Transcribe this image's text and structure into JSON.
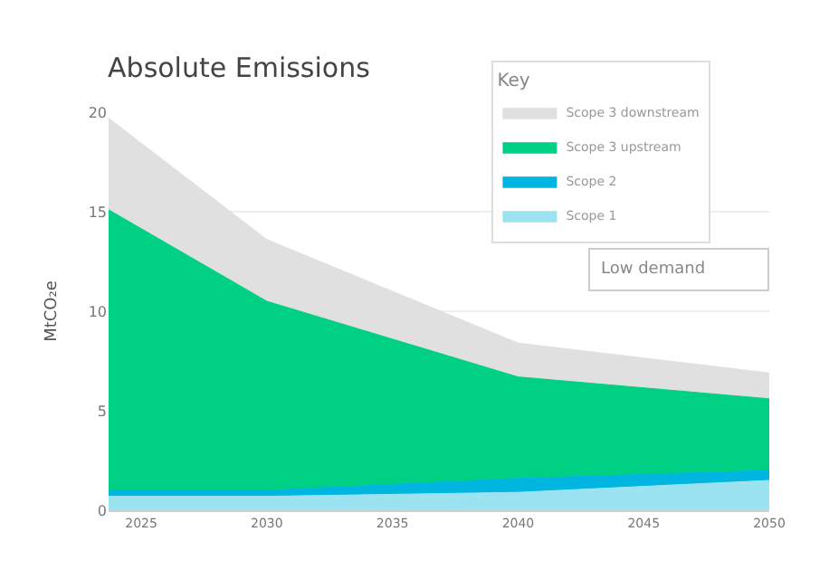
{
  "chart_data": {
    "type": "area",
    "stacked": true,
    "title": "Absolute Emissions",
    "ylabel": "MtCO₂e",
    "legend_title": "Key",
    "x": [
      2023.7,
      2030,
      2040,
      2050
    ],
    "series": [
      {
        "name": "Scope 1",
        "color": "#9be3f0",
        "values": [
          0.7,
          0.7,
          0.9,
          1.5
        ]
      },
      {
        "name": "Scope 2",
        "color": "#00b5e0",
        "values": [
          0.3,
          0.3,
          0.7,
          0.5
        ]
      },
      {
        "name": "Scope 3 upstream",
        "color": "#00d084",
        "values": [
          14.1,
          9.5,
          5.1,
          3.6
        ]
      },
      {
        "name": "Scope 3 downstream",
        "color": "#e0e0e0",
        "values": [
          4.6,
          3.1,
          1.7,
          1.3
        ]
      }
    ],
    "xlim": [
      2023.7,
      2050
    ],
    "xticks": [
      2025,
      2030,
      2035,
      2040,
      2045,
      2050
    ],
    "ylim": [
      0,
      20
    ],
    "yticks": [
      0,
      5,
      10,
      15,
      20
    ],
    "grid": "y",
    "legend": "top right",
    "annotations": [
      "Low demand"
    ]
  }
}
